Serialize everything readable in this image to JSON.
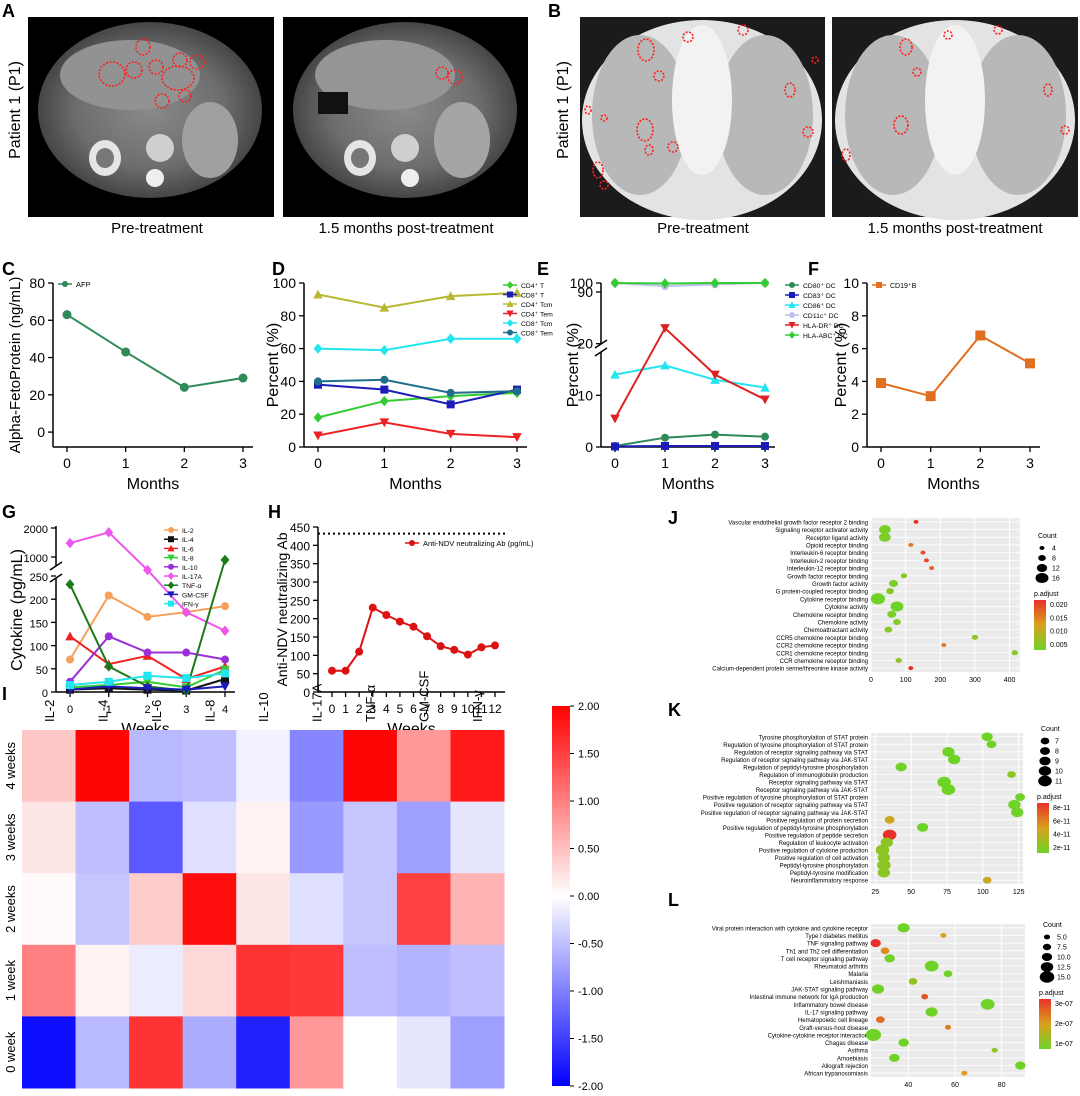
{
  "panels": {
    "A": {
      "letter": "A",
      "row_label": "Patient 1 (P1)",
      "images": [
        "Pre-treatment",
        "1.5 months post-treatment"
      ]
    },
    "B": {
      "letter": "B",
      "row_label": "Patient 1 (P1)",
      "images": [
        "Pre-treatment",
        "1.5 months post-treatment"
      ]
    }
  },
  "chart_data": [
    {
      "id": "C",
      "type": "line",
      "ylabel": "Alpha-FetoProtein (ng/mL)",
      "xlabel": "Months",
      "x": [
        0,
        1,
        2,
        3
      ],
      "ylim": [
        0,
        80
      ],
      "yticks": [
        0,
        20,
        40,
        60,
        80
      ],
      "series": [
        {
          "name": "AFP",
          "color": "#2e8b57",
          "marker": "circle",
          "values": [
            63,
            43,
            24,
            29
          ]
        }
      ]
    },
    {
      "id": "D",
      "type": "line",
      "ylabel": "Percent (%)",
      "xlabel": "Months",
      "x": [
        0,
        1,
        2,
        3
      ],
      "ylim": [
        0,
        100
      ],
      "yticks": [
        0,
        20,
        40,
        60,
        80,
        100
      ],
      "series": [
        {
          "name": "CD4⁺ T",
          "color": "#33cc33",
          "marker": "diamond",
          "values": [
            18,
            28,
            31,
            33
          ]
        },
        {
          "name": "CD8⁺ T",
          "color": "#1c1cb8",
          "marker": "square",
          "values": [
            38,
            35,
            26,
            35
          ]
        },
        {
          "name": "CD4⁺ Tcm",
          "color": "#b8b832",
          "marker": "triangle-up",
          "values": [
            93,
            85,
            92,
            94
          ]
        },
        {
          "name": "CD4⁺ Tem",
          "color": "#ee2222",
          "marker": "triangle-down",
          "values": [
            7,
            15,
            8,
            6
          ]
        },
        {
          "name": "CD8⁺ Tcm",
          "color": "#22e5f0",
          "marker": "diamond",
          "values": [
            60,
            59,
            66,
            66
          ]
        },
        {
          "name": "CD8⁺ Tem",
          "color": "#1f6f8b",
          "marker": "circle",
          "values": [
            40,
            41,
            33,
            34
          ]
        }
      ]
    },
    {
      "id": "E",
      "type": "line",
      "ylabel": "Percent (%)",
      "xlabel": "Months",
      "x": [
        0,
        1,
        2,
        3
      ],
      "ylim": [
        0,
        100
      ],
      "axis_break": [
        30,
        90
      ],
      "yticks": [
        0,
        10,
        20,
        90,
        100
      ],
      "series": [
        {
          "name": "CD80⁺ DC",
          "color": "#2e8b57",
          "marker": "circle",
          "values": [
            0.2,
            1.8,
            2.4,
            2.0
          ]
        },
        {
          "name": "CD83⁺ DC",
          "color": "#1c1cb8",
          "marker": "square",
          "values": [
            0.1,
            0.2,
            0.2,
            0.2
          ]
        },
        {
          "name": "CD86⁺ DC",
          "color": "#22e5f0",
          "marker": "triangle-up",
          "values": [
            14,
            15.8,
            13,
            11.5
          ]
        },
        {
          "name": "CD11c⁺ DC",
          "color": "#c0c0ee",
          "marker": "circle",
          "values": [
            100,
            96.5,
            98.5,
            100
          ]
        },
        {
          "name": "HLA-DR⁺ DC",
          "color": "#dd2222",
          "marker": "triangle-down",
          "values": [
            5.5,
            23,
            14,
            9.2
          ]
        },
        {
          "name": "HLA-ABC⁺ DC",
          "color": "#33cc33",
          "marker": "diamond",
          "values": [
            100,
            99.5,
            100,
            100
          ]
        }
      ]
    },
    {
      "id": "F",
      "type": "line",
      "ylabel": "Percent (%)",
      "xlabel": "Months",
      "x": [
        0,
        1,
        2,
        3
      ],
      "ylim": [
        0,
        10
      ],
      "yticks": [
        0,
        2,
        4,
        6,
        8,
        10
      ],
      "series": [
        {
          "name": "CD19⁺B",
          "color": "#e07020",
          "marker": "square",
          "values": [
            3.9,
            3.1,
            6.8,
            5.1
          ]
        }
      ]
    },
    {
      "id": "G",
      "type": "line",
      "ylabel": "Cytokine (pg/mL)",
      "xlabel": "Weeks",
      "x": [
        0,
        1,
        2,
        3,
        4
      ],
      "ylim": [
        0,
        2000
      ],
      "axis_break": [
        270,
        400
      ],
      "yticks_lower": [
        0,
        50,
        100,
        150,
        200,
        250
      ],
      "yticks_upper": [
        1000,
        2000
      ],
      "series": [
        {
          "name": "IL-2",
          "color": "#f5a05a",
          "marker": "circle",
          "values": [
            70,
            208,
            162,
            172,
            185
          ]
        },
        {
          "name": "IL-4",
          "color": "#111111",
          "marker": "square",
          "values": [
            5,
            8,
            5,
            3,
            28
          ]
        },
        {
          "name": "IL-6",
          "color": "#ee2222",
          "marker": "triangle-up",
          "values": [
            120,
            60,
            78,
            28,
            55
          ]
        },
        {
          "name": "IL-8",
          "color": "#33cc33",
          "marker": "triangle-down",
          "values": [
            10,
            15,
            22,
            10,
            48
          ]
        },
        {
          "name": "IL-10",
          "color": "#9b30d9",
          "marker": "circle",
          "values": [
            22,
            120,
            85,
            85,
            70
          ]
        },
        {
          "name": "IL-17A",
          "color": "#ee55ee",
          "marker": "diamond",
          "values": [
            1480,
            1850,
            580,
            172,
            132
          ]
        },
        {
          "name": "TNF-α",
          "color": "#1a7a1a",
          "marker": "diamond",
          "values": [
            232,
            55,
            12,
            3,
            900
          ]
        },
        {
          "name": "GM-CSF",
          "color": "#1c1cb8",
          "marker": "triangle-down",
          "values": [
            5,
            12,
            8,
            5,
            12
          ]
        },
        {
          "name": "IFN-γ",
          "color": "#22e5f0",
          "marker": "square",
          "values": [
            15,
            22,
            35,
            30,
            40
          ]
        }
      ]
    },
    {
      "id": "H",
      "type": "line",
      "ylabel": "Anti-NDV neutralizing Ab",
      "xlabel": "Weeks",
      "x": [
        0,
        1,
        2,
        3,
        4,
        5,
        6,
        7,
        8,
        9,
        10,
        11,
        12
      ],
      "ylim": [
        0,
        450
      ],
      "yticks": [
        0,
        50,
        100,
        150,
        200,
        250,
        300,
        350,
        400,
        450
      ],
      "reference_line": 432,
      "series": [
        {
          "name": "Anti-NDV neutralizing Ab (pg/mL)",
          "color": "#dd1111",
          "marker": "circle",
          "values": [
            58,
            58,
            110,
            230,
            210,
            192,
            178,
            152,
            125,
            115,
            102,
            122,
            127
          ]
        }
      ]
    },
    {
      "id": "I",
      "type": "heatmap",
      "columns": [
        "IL-2",
        "IL-4",
        "IL-6",
        "IL-8",
        "IL-10",
        "IL-17A",
        "TNF-α",
        "GM-CSF",
        "IFN-γ"
      ],
      "rows": [
        "4 weeks",
        "3 weeks",
        "2 weeks",
        "1 week",
        "0 week"
      ],
      "values": [
        [
          0.45,
          1.95,
          -0.55,
          -0.5,
          -0.1,
          -0.95,
          1.95,
          0.8,
          1.8
        ],
        [
          0.2,
          -0.5,
          -1.3,
          -0.25,
          0.1,
          -0.8,
          -0.45,
          -0.75,
          -0.2
        ],
        [
          0.05,
          -0.45,
          0.4,
          1.9,
          0.2,
          -0.25,
          -0.45,
          1.5,
          0.6
        ],
        [
          1.0,
          0.1,
          -0.15,
          0.3,
          1.6,
          1.55,
          -0.5,
          -0.6,
          -0.5
        ],
        [
          -1.9,
          -0.55,
          1.6,
          -0.65,
          -1.75,
          0.8,
          0.0,
          -0.2,
          -0.75
        ]
      ],
      "vmin": -2,
      "vmax": 2,
      "colorbar_ticks": [
        "2.00",
        "1.50",
        "1.00",
        "0.50",
        "0.00",
        "-0.50",
        "-1.00",
        "-1.50",
        "-2.00"
      ]
    },
    {
      "id": "J",
      "type": "scatter",
      "terms": [
        "Vascular endothelial growth factor receptor 2 binding",
        "Signaling receptor activator activity",
        "Receptor ligand activity",
        "Opioid receptor binding",
        "Interleukin-6 receptor binding",
        "Interleukin-2 receptor binding",
        "Interleukin-12 receptor binding",
        "Growth factor receptor binding",
        "Growth factor activity",
        "G protein-coupled receptor binding",
        "Cytokine receptor binding",
        "Cytokine activity",
        "Chemokine receptor binding",
        "Chemokine activity",
        "Chemoattractant activity",
        "CCR5 chemokine receptor binding",
        "CCR2 chemokine receptor binding",
        "CCR1 chemokine receptor binding",
        "CCR chemokine receptor binding",
        "Calcium-dependent protein serine/threonine kinase activity"
      ],
      "x": [
        130,
        40,
        40,
        115,
        150,
        160,
        175,
        95,
        65,
        55,
        20,
        75,
        60,
        75,
        50,
        300,
        210,
        415,
        80,
        115
      ],
      "count": [
        4,
        14,
        14,
        4,
        4,
        4,
        4,
        6,
        10,
        8,
        18,
        16,
        10,
        8,
        8,
        6,
        4,
        6,
        6,
        4
      ],
      "p_adjust": [
        0.02,
        0.002,
        0.002,
        0.014,
        0.018,
        0.018,
        0.016,
        0.003,
        0.002,
        0.003,
        0.001,
        0.001,
        0.002,
        0.003,
        0.003,
        0.004,
        0.014,
        0.003,
        0.004,
        0.02
      ],
      "xticks": [
        0,
        100,
        200,
        300,
        400
      ],
      "xlim": [
        0,
        430
      ],
      "size_legend_title": "Count",
      "size_legend": [
        4,
        8,
        12,
        16
      ],
      "color_legend_title": "p.adjust",
      "color_legend": [
        "0.020",
        "0.015",
        "0.010",
        "0.005"
      ]
    },
    {
      "id": "K",
      "type": "scatter",
      "terms": [
        "Tyrosine phosphorylation of STAT protein",
        "Regulation of tyrosine phosphorylation of STAT protein",
        "Regulation of receptor signaling pathway via STAT",
        "Regulation of receptor signaling pathway via JAK-STAT",
        "Regulation of peptidyl-tyrosine phosphorylation",
        "Regulation of immunoglobulin production",
        "Receptor signaling pathway via STAT",
        "Receptor signaling pathway via JAK-STAT",
        "Positive regulation of tyrosine phosphorylation of STAT protein",
        "Positive regulation of receptor signaling pathway via STAT",
        "Positive regulation of receptor signaling pathway via JAK-STAT",
        "Positive regulation of protein secretion",
        "Positive regulation of peptidyl-tyrosine phosphorylation",
        "Positive regulation of peptide secretion",
        "Regulation of leukocyte activation",
        "Positive regulation of cytokine production",
        "Positive regulation of cell activation",
        "Peptidyl-tyrosine phosphorylation",
        "Peptidyl-tyrosine modification",
        "Neuroinflammatory response"
      ],
      "x": [
        103,
        106,
        76,
        80,
        43,
        120,
        73,
        76,
        126,
        122,
        124,
        35,
        58,
        35,
        33,
        30,
        31,
        31,
        31,
        103
      ],
      "count": [
        9,
        8,
        10,
        10,
        9,
        7,
        11,
        11,
        8,
        10,
        10,
        8,
        9,
        11,
        10,
        11,
        10,
        11,
        10,
        7
      ],
      "p_adjust": [
        2e-11,
        2e-11,
        2e-11,
        2e-11,
        2e-11,
        3e-11,
        2e-11,
        2e-11,
        2e-11,
        2e-11,
        2e-11,
        5e-11,
        2e-11,
        9e-11,
        3e-11,
        3e-11,
        3e-11,
        3e-11,
        3e-11,
        5e-11
      ],
      "xticks": [
        25,
        50,
        75,
        100,
        125
      ],
      "xlim": [
        22,
        128
      ],
      "size_legend_title": "Count",
      "size_legend": [
        7,
        8,
        9,
        10,
        11
      ],
      "color_legend_title": "p.adjust",
      "color_legend": [
        "8e-11",
        "6e-11",
        "4e-11",
        "2e-11"
      ]
    },
    {
      "id": "L",
      "type": "scatter",
      "terms": [
        "Viral protein interaction with cytokine and cytokine receptor",
        "Type I diabetes mellitus",
        "TNF signaling pathway",
        "Th1 and Th2 cell differentiation",
        "T cell receptor signaling pathway",
        "Rheumatoid arthritis",
        "Malaria",
        "Leishmaniasis",
        "JAK-STAT signaling pathway",
        "Intestinal immune network for IgA production",
        "Inflammatory bowel disease",
        "IL-17 signaling pathway",
        "Hematopoietic cell lineage",
        "Graft-versus-host disease",
        "Cytokine-cytokine receptor interaction",
        "Chagas disease",
        "Asthma",
        "Amoebiasis",
        "Allograft rejection",
        "African trypanosomiasis"
      ],
      "x": [
        38,
        55,
        26,
        30,
        32,
        50,
        57,
        42,
        27,
        47,
        74,
        50,
        28,
        57,
        25,
        38,
        77,
        34,
        88,
        64
      ],
      "count": [
        12,
        5,
        10,
        8,
        10,
        14,
        8,
        8,
        12,
        6,
        14,
        12,
        8,
        5,
        16,
        10,
        5,
        10,
        10,
        5
      ],
      "p_adjust": [
        1e-07,
        2.5e-07,
        4e-07,
        2.8e-07,
        1e-07,
        1e-07,
        1e-07,
        1.5e-07,
        1e-07,
        3.5e-07,
        1e-07,
        1e-07,
        3.2e-07,
        3e-07,
        1e-07,
        1e-07,
        1.5e-07,
        1e-07,
        1e-07,
        2.5e-07
      ],
      "xticks": [
        40,
        60,
        80
      ],
      "xlim": [
        24,
        90
      ],
      "size_legend_title": "Count",
      "size_legend": [
        "5.0",
        "7.5",
        "10.0",
        "12.5",
        "15.0"
      ],
      "color_legend_title": "p.adjust",
      "color_legend": [
        "3e-07",
        "2e-07",
        "1e-07"
      ]
    }
  ]
}
